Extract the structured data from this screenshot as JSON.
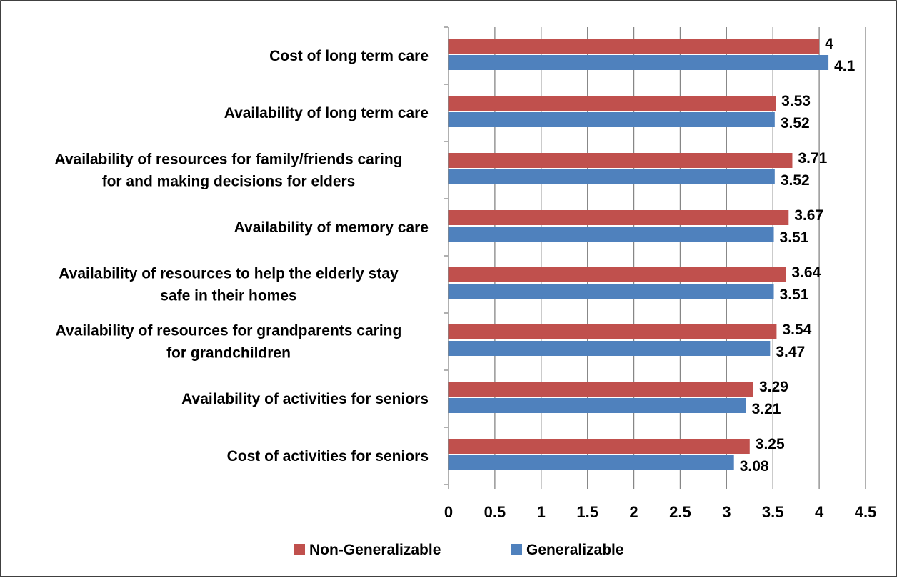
{
  "chart_data": {
    "type": "bar",
    "orientation": "horizontal",
    "title": "",
    "xlabel": "",
    "ylabel": "",
    "xlim": [
      0,
      4.5
    ],
    "x_ticks": [
      "0",
      "0.5",
      "1",
      "1.5",
      "2",
      "2.5",
      "3",
      "3.5",
      "4",
      "4.5"
    ],
    "grid": "vertical",
    "legend_position": "bottom",
    "categories": [
      "Cost of long term care",
      "Availability of long term care",
      "Availability of resources for family/friends caring for and making decisions for elders",
      "Availability of memory care",
      "Availability of resources to help the elderly stay safe in their homes",
      "Availability of resources for grandparents caring for grandchildren",
      "Availability of activities for seniors",
      "Cost of activities for seniors"
    ],
    "category_lines": [
      [
        "Cost of long term care"
      ],
      [
        "Availability of long term care"
      ],
      [
        "Availability of resources for family/friends caring",
        "for and making decisions for elders"
      ],
      [
        "Availability of memory care"
      ],
      [
        "Availability of resources to help the elderly stay",
        "safe in their homes"
      ],
      [
        "Availability of resources for grandparents caring",
        "for grandchildren"
      ],
      [
        "Availability of activities for seniors"
      ],
      [
        "Cost of activities for seniors"
      ]
    ],
    "series": [
      {
        "name": "Non-Generalizable",
        "color": "#c0504d",
        "values": [
          4,
          3.53,
          3.71,
          3.67,
          3.64,
          3.54,
          3.29,
          3.25
        ],
        "labels": [
          "4",
          "3.53",
          "3.71",
          "3.67",
          "3.64",
          "3.54",
          "3.29",
          "3.25"
        ]
      },
      {
        "name": "Generalizable",
        "color": "#4f81bd",
        "values": [
          4.1,
          3.52,
          3.52,
          3.51,
          3.51,
          3.47,
          3.21,
          3.08
        ],
        "labels": [
          "4.1",
          "3.52",
          "3.52",
          "3.51",
          "3.51",
          "3.47",
          "3.21",
          "3.08"
        ]
      }
    ]
  }
}
